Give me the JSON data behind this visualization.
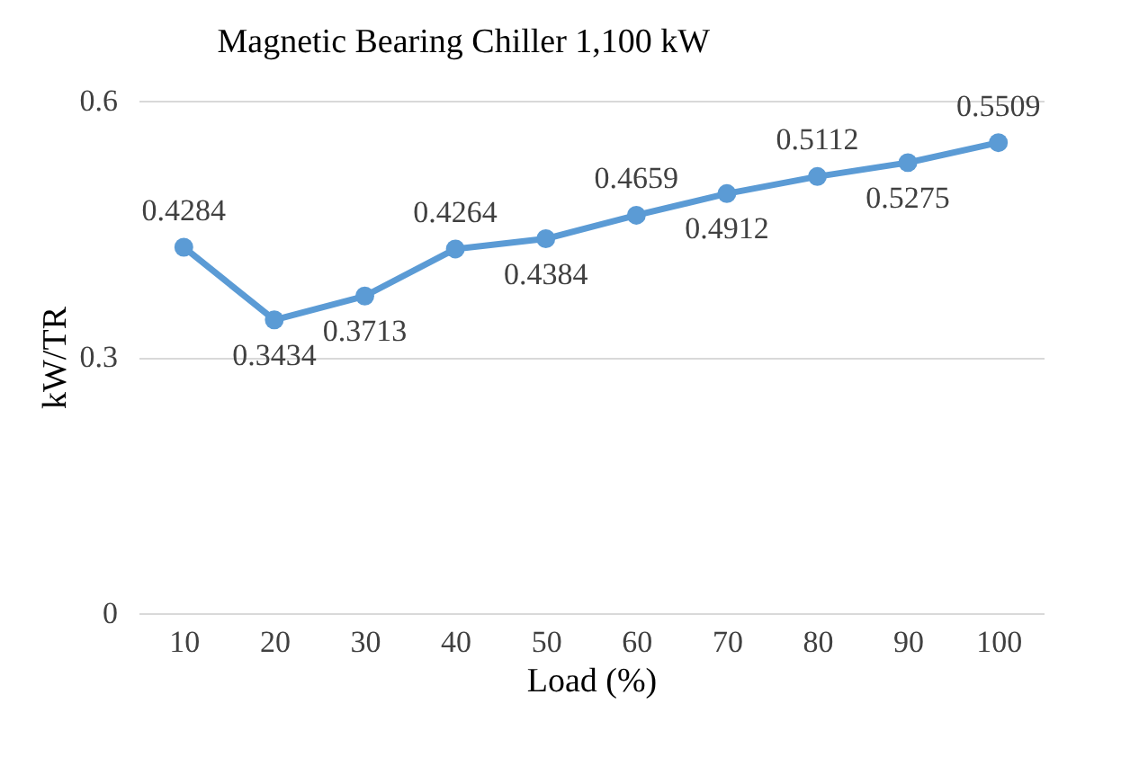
{
  "chart_data": {
    "type": "line",
    "title": "Magnetic Bearing Chiller 1,100 kW",
    "xlabel": "Load (%)",
    "ylabel": "kW/TR",
    "categories": [
      "10",
      "20",
      "30",
      "40",
      "50",
      "60",
      "70",
      "80",
      "90",
      "100"
    ],
    "series": [
      {
        "color": "#5b9bd5",
        "values": [
          0.4284,
          0.3434,
          0.3713,
          0.4264,
          0.4384,
          0.4659,
          0.4912,
          0.5112,
          0.5275,
          0.5509
        ]
      }
    ],
    "ylim": [
      0,
      0.6
    ],
    "yticks": [
      0,
      0.3,
      0.6
    ],
    "grid": "y",
    "marker": "circle",
    "line_style": "solid",
    "data_labels": true
  }
}
